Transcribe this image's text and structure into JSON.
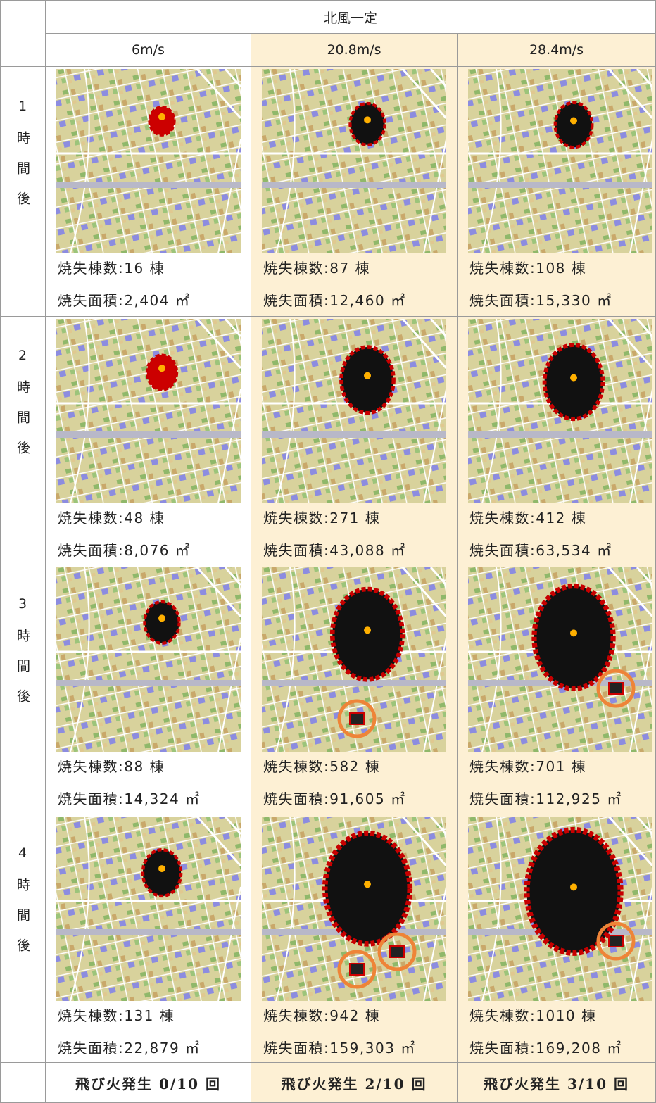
{
  "header": {
    "title": "北風一定",
    "columns": [
      "6m/s",
      "20.8m/s",
      "28.4m/s"
    ]
  },
  "rows": [
    {
      "label": "1時間後",
      "cells": [
        {
          "buildings": "焼失棟数:16 棟",
          "area": "焼失面積:2,404 ㎡"
        },
        {
          "buildings": "焼失棟数:87 棟",
          "area": "焼失面積:12,460 ㎡"
        },
        {
          "buildings": "焼失棟数:108 棟",
          "area": "焼失面積:15,330 ㎡"
        }
      ]
    },
    {
      "label": "2時間後",
      "cells": [
        {
          "buildings": "焼失棟数:48 棟",
          "area": "焼失面積:8,076 ㎡"
        },
        {
          "buildings": "焼失棟数:271 棟",
          "area": "焼失面積:43,088 ㎡"
        },
        {
          "buildings": "焼失棟数:412 棟",
          "area": "焼失面積:63,534 ㎡"
        }
      ]
    },
    {
      "label": "3時間後",
      "cells": [
        {
          "buildings": "焼失棟数:88 棟",
          "area": "焼失面積:14,324 ㎡"
        },
        {
          "buildings": "焼失棟数:582 棟",
          "area": "焼失面積:91,605 ㎡"
        },
        {
          "buildings": "焼失棟数:701 棟",
          "area": "焼失面積:112,925 ㎡"
        }
      ]
    },
    {
      "label": "4時間後",
      "cells": [
        {
          "buildings": "焼失棟数:131 棟",
          "area": "焼失面積:22,879 ㎡"
        },
        {
          "buildings": "焼失棟数:942 棟",
          "area": "焼失面積:159,303 ㎡"
        },
        {
          "buildings": "焼失棟数:1010 棟",
          "area": "焼失面積:169,208 ㎡"
        }
      ]
    }
  ],
  "footer": [
    "飛び火発生 0/10 回",
    "飛び火発生 2/10 回",
    "飛び火発生 3/10 回"
  ]
}
